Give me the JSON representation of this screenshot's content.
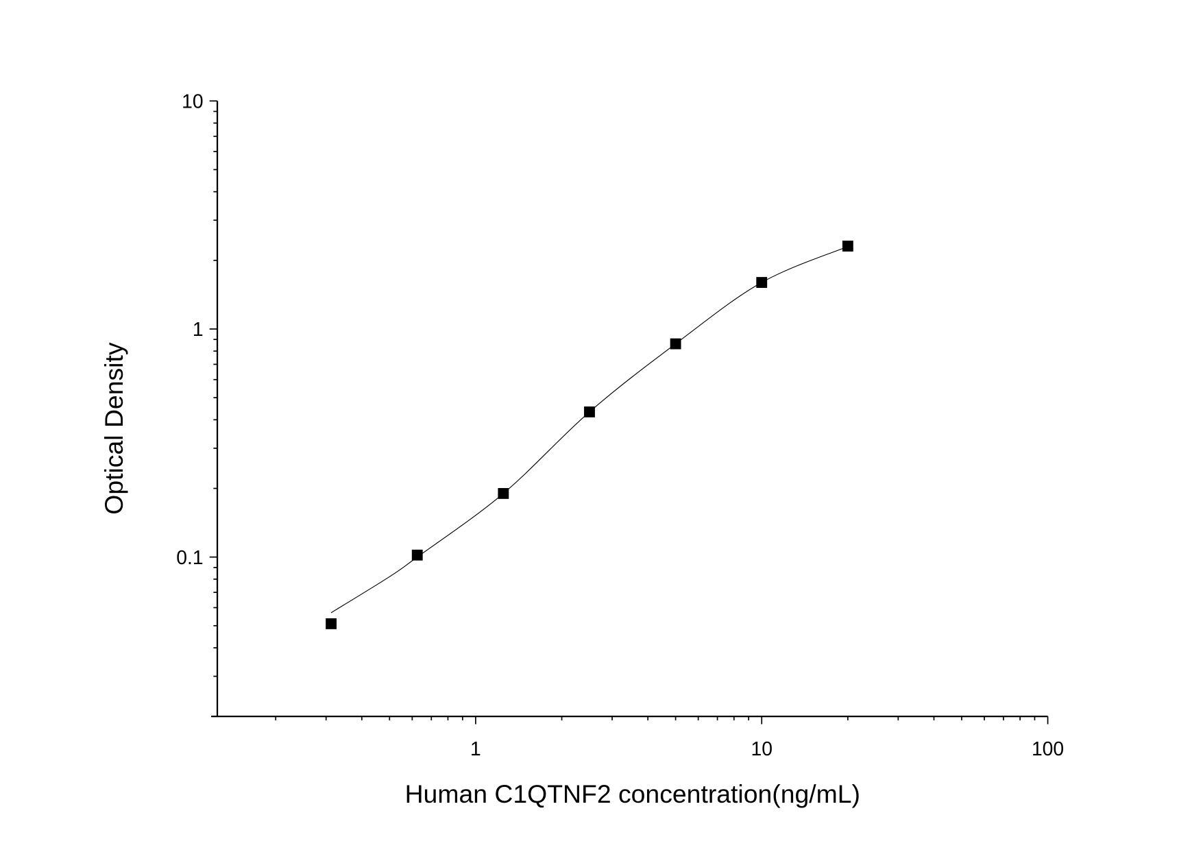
{
  "chart_data": {
    "type": "scatter",
    "title": "",
    "xlabel": "Human C1QTNF2 concentration(ng/mL)",
    "ylabel": "Optical Density",
    "x_scale": "log",
    "y_scale": "log",
    "xlim": [
      0.125,
      100
    ],
    "ylim": [
      0.02,
      10
    ],
    "x_ticks": [
      {
        "v": 1,
        "label": "1"
      },
      {
        "v": 10,
        "label": "10"
      },
      {
        "v": 100,
        "label": "100"
      }
    ],
    "y_ticks": [
      {
        "v": 0.1,
        "label": "0.1"
      },
      {
        "v": 1,
        "label": "1"
      },
      {
        "v": 10,
        "label": "10"
      }
    ],
    "grid": false,
    "legend": "none",
    "marker": "square",
    "color": "#000000",
    "series": [
      {
        "x": [
          0.3125,
          0.625,
          1.25,
          2.5,
          5,
          10,
          20
        ],
        "y": [
          0.051,
          0.102,
          0.19,
          0.433,
          0.861,
          1.6,
          2.31
        ]
      }
    ],
    "fit_curve": {
      "x": [
        0.3125,
        0.5,
        0.625,
        1.25,
        2.5,
        5,
        10,
        20
      ],
      "y": [
        0.057,
        0.082,
        0.1,
        0.19,
        0.433,
        0.861,
        1.6,
        2.3
      ]
    }
  }
}
